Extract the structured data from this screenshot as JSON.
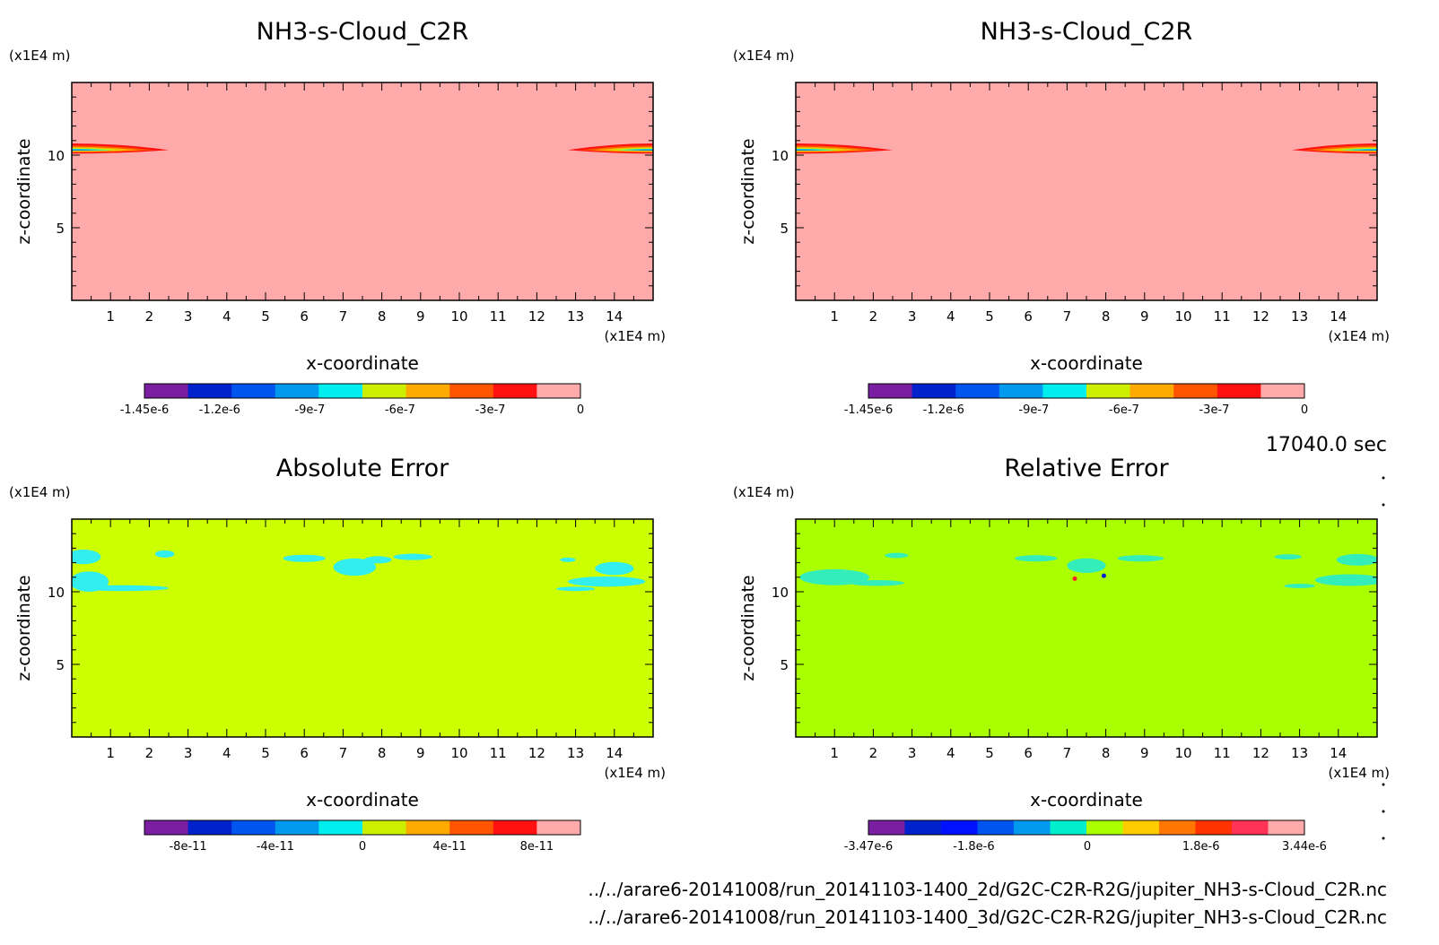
{
  "time_label": "17040.0 sec",
  "footer": {
    "file_2d": "../../arare6-20141008/run_20141103-1400_2d/G2C-C2R-R2G/jupiter_NH3-s-Cloud_C2R.nc",
    "file_3d": "../../arare6-20141008/run_20141103-1400_3d/G2C-C2R-R2G/jupiter_NH3-s-Cloud_C2R.nc"
  },
  "chart_data": [
    {
      "type": "heatmap",
      "title": "NH3-s-Cloud_C2R",
      "xlabel": "x-coordinate",
      "ylabel": "z-coordinate",
      "x_unit": "(x1E4 m)",
      "y_unit": "(x1E4 m)",
      "xlim": [
        0,
        15
      ],
      "ylim": [
        0,
        15
      ],
      "xticks": [
        "1",
        "2",
        "3",
        "4",
        "5",
        "6",
        "7",
        "8",
        "9",
        "10",
        "11",
        "12",
        "13",
        "14"
      ],
      "yticks": [
        "5",
        "10"
      ],
      "background_color": "#ffaaaa",
      "features": [
        {
          "x": 0.0,
          "z": 10.35,
          "extent": 2.5,
          "side": "left"
        },
        {
          "x": 15.0,
          "z": 10.35,
          "extent": 2.2,
          "side": "right"
        }
      ],
      "colorbar": {
        "colors": [
          "#7b1fa2",
          "#0022cc",
          "#0055ee",
          "#0099ee",
          "#00eeee",
          "#ccee00",
          "#ffaa00",
          "#ff5500",
          "#ff1111",
          "#ffaaaa"
        ],
        "tick_labels": [
          "-1.45e-6",
          "-1.2e-6",
          "-9e-7",
          "-6e-7",
          "-3e-7",
          "0"
        ],
        "tick_values": [
          -1.45e-06,
          -1.2e-06,
          -9e-07,
          -6e-07,
          -3e-07,
          0
        ],
        "range": [
          -1.45e-06,
          0
        ]
      }
    },
    {
      "type": "heatmap",
      "title": "NH3-s-Cloud_C2R",
      "xlabel": "x-coordinate",
      "ylabel": "z-coordinate",
      "x_unit": "(x1E4 m)",
      "y_unit": "(x1E4 m)",
      "xlim": [
        0,
        15
      ],
      "ylim": [
        0,
        15
      ],
      "xticks": [
        "1",
        "2",
        "3",
        "4",
        "5",
        "6",
        "7",
        "8",
        "9",
        "10",
        "11",
        "12",
        "13",
        "14"
      ],
      "yticks": [
        "5",
        "10"
      ],
      "background_color": "#ffaaaa",
      "features": [
        {
          "x": 0.0,
          "z": 10.35,
          "extent": 2.5,
          "side": "left"
        },
        {
          "x": 15.0,
          "z": 10.35,
          "extent": 2.2,
          "side": "right"
        }
      ],
      "colorbar": {
        "colors": [
          "#7b1fa2",
          "#0022cc",
          "#0055ee",
          "#0099ee",
          "#00eeee",
          "#ccee00",
          "#ffaa00",
          "#ff5500",
          "#ff1111",
          "#ffaaaa"
        ],
        "tick_labels": [
          "-1.45e-6",
          "-1.2e-6",
          "-9e-7",
          "-6e-7",
          "-3e-7",
          "0"
        ],
        "tick_values": [
          -1.45e-06,
          -1.2e-06,
          -9e-07,
          -6e-07,
          -3e-07,
          0
        ],
        "range": [
          -1.45e-06,
          0
        ]
      }
    },
    {
      "type": "heatmap",
      "title": "Absolute Error",
      "xlabel": "x-coordinate",
      "ylabel": "z-coordinate",
      "x_unit": "(x1E4 m)",
      "y_unit": "(x1E4 m)",
      "xlim": [
        0,
        15
      ],
      "ylim": [
        0,
        15
      ],
      "xticks": [
        "1",
        "2",
        "3",
        "4",
        "5",
        "6",
        "7",
        "8",
        "9",
        "10",
        "11",
        "12",
        "13",
        "14"
      ],
      "yticks": [
        "5",
        "10"
      ],
      "background_color": "#ccff00",
      "patch_color": "#33eeee",
      "patches": [
        {
          "x": 0.3,
          "z": 12.4,
          "rx": 0.45,
          "rz": 0.5
        },
        {
          "x": 0.45,
          "z": 10.7,
          "rx": 0.5,
          "rz": 0.7
        },
        {
          "x": 1.3,
          "z": 10.25,
          "rx": 1.2,
          "rz": 0.2
        },
        {
          "x": 2.4,
          "z": 12.6,
          "rx": 0.25,
          "rz": 0.25
        },
        {
          "x": 6.0,
          "z": 12.3,
          "rx": 0.55,
          "rz": 0.25
        },
        {
          "x": 7.3,
          "z": 11.7,
          "rx": 0.55,
          "rz": 0.6
        },
        {
          "x": 7.9,
          "z": 12.2,
          "rx": 0.35,
          "rz": 0.25
        },
        {
          "x": 8.8,
          "z": 12.4,
          "rx": 0.5,
          "rz": 0.22
        },
        {
          "x": 12.8,
          "z": 12.2,
          "rx": 0.2,
          "rz": 0.15
        },
        {
          "x": 14.0,
          "z": 11.6,
          "rx": 0.5,
          "rz": 0.45
        },
        {
          "x": 13.8,
          "z": 10.7,
          "rx": 1.0,
          "rz": 0.35
        },
        {
          "x": 13.0,
          "z": 10.2,
          "rx": 0.5,
          "rz": 0.15
        }
      ],
      "colorbar": {
        "colors": [
          "#7b1fa2",
          "#0022cc",
          "#0055ee",
          "#0099ee",
          "#00eeee",
          "#ccee00",
          "#ffaa00",
          "#ff5500",
          "#ff1111",
          "#ffaaaa"
        ],
        "tick_labels": [
          "-8e-11",
          "-4e-11",
          "0",
          "4e-11",
          "8e-11"
        ],
        "tick_values": [
          -8e-11,
          -4e-11,
          0,
          4e-11,
          8e-11
        ],
        "range": [
          -1e-10,
          1e-10
        ]
      }
    },
    {
      "type": "heatmap",
      "title": "Relative Error",
      "xlabel": "x-coordinate",
      "ylabel": "z-coordinate",
      "x_unit": "(x1E4 m)",
      "y_unit": "(x1E4 m)",
      "xlim": [
        0,
        15
      ],
      "ylim": [
        0,
        15
      ],
      "xticks": [
        "1",
        "2",
        "3",
        "4",
        "5",
        "6",
        "7",
        "8",
        "9",
        "10",
        "11",
        "12",
        "13",
        "14"
      ],
      "yticks": [
        "5",
        "10"
      ],
      "background_color": "#aaff00",
      "patch_color": "#33eebb",
      "patches": [
        {
          "x": 1.0,
          "z": 11.0,
          "rx": 0.9,
          "rz": 0.55
        },
        {
          "x": 2.1,
          "z": 10.6,
          "rx": 0.7,
          "rz": 0.2
        },
        {
          "x": 2.6,
          "z": 12.5,
          "rx": 0.3,
          "rz": 0.18
        },
        {
          "x": 6.2,
          "z": 12.3,
          "rx": 0.55,
          "rz": 0.22
        },
        {
          "x": 7.5,
          "z": 11.8,
          "rx": 0.5,
          "rz": 0.5
        },
        {
          "x": 8.9,
          "z": 12.3,
          "rx": 0.6,
          "rz": 0.22
        },
        {
          "x": 12.7,
          "z": 12.4,
          "rx": 0.35,
          "rz": 0.18
        },
        {
          "x": 14.5,
          "z": 12.2,
          "rx": 0.55,
          "rz": 0.4
        },
        {
          "x": 14.3,
          "z": 10.8,
          "rx": 0.9,
          "rz": 0.4
        },
        {
          "x": 13.0,
          "z": 10.4,
          "rx": 0.4,
          "rz": 0.15
        }
      ],
      "specks": [
        {
          "x": 7.2,
          "z": 10.9,
          "color": "#ff2222"
        },
        {
          "x": 7.95,
          "z": 11.1,
          "color": "#0022cc"
        }
      ],
      "colorbar": {
        "colors": [
          "#7b1fa2",
          "#0022cc",
          "#0011ff",
          "#0055ee",
          "#0099ee",
          "#00eecc",
          "#aaff00",
          "#ffcc00",
          "#ff7700",
          "#ff3300",
          "#ff3355",
          "#ffaaaa"
        ],
        "tick_labels": [
          "-3.47e-6",
          "-1.8e-6",
          "0",
          "1.8e-6",
          "3.44e-6"
        ],
        "tick_values": [
          -3.47e-06,
          -1.8e-06,
          0,
          1.8e-06,
          3.44e-06
        ],
        "range": [
          -3.47e-06,
          3.44e-06
        ]
      }
    }
  ]
}
